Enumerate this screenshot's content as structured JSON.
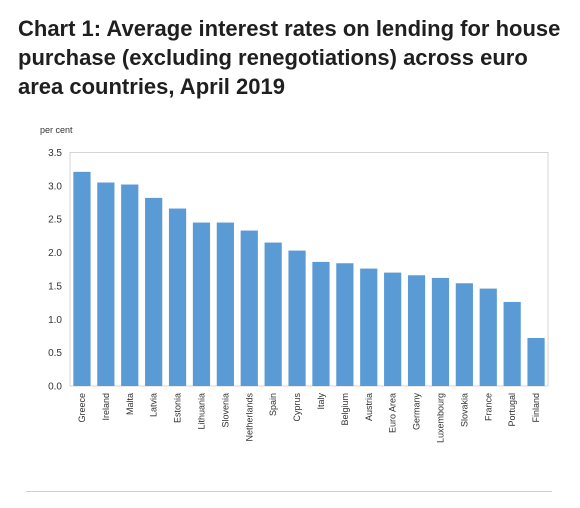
{
  "page": {
    "title": "Chart 1: Average interest rates on lending for house purchase (excluding renegotiations) across euro area countries, April 2019"
  },
  "chart_data": {
    "type": "bar",
    "title": "Chart 1: Average interest rates on lending for house purchase (excluding renegotiations) across euro area countries, April 2019",
    "ylabel": "per cent",
    "xlabel": "",
    "ylim": [
      0,
      3.5
    ],
    "yticks": [
      "0.0",
      "0.5",
      "1.0",
      "1.5",
      "2.0",
      "2.5",
      "3.0",
      "3.5"
    ],
    "grid": false,
    "bar_color": "#5b9bd5",
    "categories": [
      "Greece",
      "Ireland",
      "Malta",
      "Latvia",
      "Estonia",
      "Lithuania",
      "Slovenia",
      "Netherlands",
      "Spain",
      "Cyprus",
      "Italy",
      "Belgium",
      "Austria",
      "Euro Area",
      "Germany",
      "Luxembourg",
      "Slovakia",
      "France",
      "Portugal",
      "Finland"
    ],
    "values": [
      3.21,
      3.05,
      3.02,
      2.82,
      2.66,
      2.45,
      2.45,
      2.33,
      2.15,
      2.03,
      1.86,
      1.84,
      1.76,
      1.7,
      1.66,
      1.62,
      1.54,
      1.46,
      1.26,
      0.72
    ]
  }
}
